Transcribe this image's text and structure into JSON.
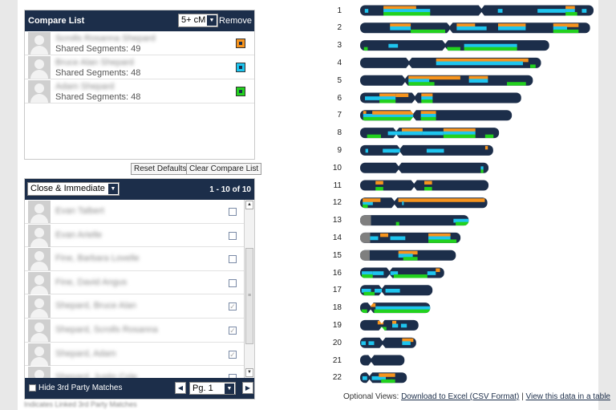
{
  "compare_list": {
    "title": "Compare List",
    "filter_value": "5+ cM",
    "remove_label": "Remove",
    "entries": [
      {
        "name": "Scrolls Rosanna Shepard",
        "segments": "Shared Segments: 49",
        "color": "#f7941d"
      },
      {
        "name": "Bruce Alan Shepard",
        "segments": "Shared Segments: 48",
        "color": "#1ec5ef"
      },
      {
        "name": "Adam Shepard",
        "segments": "Shared Segments: 48",
        "color": "#22d11e"
      }
    ],
    "reset_label": "Reset Defaults",
    "clear_label": "Clear Compare List"
  },
  "matches": {
    "filter_value": "Close & Immediate",
    "range_text": "1 - 10 of 10",
    "rows": [
      {
        "name": "Evan Talbert",
        "checked": false
      },
      {
        "name": "Evan Arielle",
        "checked": false
      },
      {
        "name": "Fine, Barbara Lovelle",
        "checked": false
      },
      {
        "name": "Fine, David Angus",
        "checked": false
      },
      {
        "name": "Shepard, Bruce Alan",
        "checked": true
      },
      {
        "name": "Shepard, Scrolls Rosanna",
        "checked": true
      },
      {
        "name": "Shepard, Adam",
        "checked": true
      },
      {
        "name": "Shepard, Justin Cole",
        "checked": false
      }
    ],
    "hide_label": "Hide 3rd Party Matches",
    "page_value": "Pg. 1",
    "below_text": "Indicates Linked 3rd Party Matches"
  },
  "chromosome_browser": {
    "colors": {
      "chrom": "#1c2e4a",
      "centromere": "#7f7f7f",
      "orange": "#f7941d",
      "cyan": "#1ec5ef",
      "green": "#22d11e"
    },
    "chromosomes": [
      {
        "label": "1",
        "len": 1.0,
        "cen": 0.52,
        "segs": [
          [
            0.02,
            0.035,
            "c"
          ],
          [
            0.1,
            0.24,
            "o"
          ],
          [
            0.1,
            0.3,
            "c"
          ],
          [
            0.1,
            0.3,
            "g"
          ],
          [
            0.59,
            0.61,
            "c"
          ],
          [
            0.76,
            0.88,
            "c"
          ],
          [
            0.88,
            0.92,
            "o"
          ],
          [
            0.88,
            0.92,
            "c"
          ],
          [
            0.88,
            0.93,
            "g"
          ],
          [
            0.95,
            0.97,
            "c"
          ]
        ]
      },
      {
        "label": "2",
        "len": 0.985,
        "cen": 0.39,
        "segs": [
          [
            0.13,
            0.22,
            "o"
          ],
          [
            0.13,
            0.22,
            "c"
          ],
          [
            0.22,
            0.37,
            "g"
          ],
          [
            0.42,
            0.5,
            "o"
          ],
          [
            0.42,
            0.55,
            "c"
          ],
          [
            0.6,
            0.72,
            "o"
          ],
          [
            0.6,
            0.72,
            "c"
          ],
          [
            0.84,
            0.95,
            "o"
          ],
          [
            0.84,
            0.9,
            "c"
          ],
          [
            0.84,
            0.95,
            "g"
          ]
        ]
      },
      {
        "label": "3",
        "len": 0.81,
        "cen": 0.45,
        "segs": [
          [
            0.02,
            0.04,
            "g"
          ],
          [
            0.15,
            0.2,
            "c"
          ],
          [
            0.46,
            0.53,
            "g"
          ],
          [
            0.55,
            0.83,
            "c"
          ],
          [
            0.55,
            0.83,
            "g"
          ]
        ]
      },
      {
        "label": "4",
        "len": 0.775,
        "cen": 0.27,
        "segs": [
          [
            0.42,
            0.93,
            "o"
          ],
          [
            0.42,
            0.9,
            "c"
          ],
          [
            0.94,
            0.97,
            "g"
          ]
        ]
      },
      {
        "label": "5",
        "len": 0.74,
        "cen": 0.26,
        "segs": [
          [
            0.28,
            0.58,
            "o"
          ],
          [
            0.28,
            0.4,
            "c"
          ],
          [
            0.28,
            0.43,
            "g"
          ],
          [
            0.63,
            0.74,
            "o"
          ],
          [
            0.63,
            0.74,
            "c"
          ],
          [
            0.85,
            0.96,
            "g"
          ]
        ]
      },
      {
        "label": "6",
        "len": 0.69,
        "cen": 0.34,
        "segs": [
          [
            0.03,
            0.13,
            "c"
          ],
          [
            0.12,
            0.22,
            "o"
          ],
          [
            0.12,
            0.22,
            "c"
          ],
          [
            0.12,
            0.22,
            "g"
          ],
          [
            0.22,
            0.3,
            "o"
          ],
          [
            0.38,
            0.45,
            "o"
          ],
          [
            0.38,
            0.45,
            "c"
          ],
          [
            0.38,
            0.45,
            "g"
          ]
        ]
      },
      {
        "label": "7",
        "len": 0.65,
        "cen": 0.35,
        "segs": [
          [
            0.02,
            0.04,
            "o"
          ],
          [
            0.02,
            0.35,
            "c"
          ],
          [
            0.08,
            0.35,
            "o"
          ],
          [
            0.02,
            0.35,
            "g"
          ],
          [
            0.4,
            0.5,
            "o"
          ],
          [
            0.4,
            0.5,
            "c"
          ],
          [
            0.4,
            0.5,
            "g"
          ]
        ]
      },
      {
        "label": "8",
        "len": 0.595,
        "cen": 0.26,
        "segs": [
          [
            0.05,
            0.15,
            "g"
          ],
          [
            0.2,
            0.3,
            "c"
          ],
          [
            0.3,
            0.45,
            "o"
          ],
          [
            0.3,
            0.45,
            "c"
          ],
          [
            0.45,
            0.6,
            "c"
          ],
          [
            0.6,
            0.83,
            "o"
          ],
          [
            0.6,
            0.83,
            "c"
          ],
          [
            0.6,
            0.83,
            "g"
          ],
          [
            0.9,
            0.96,
            "g"
          ]
        ]
      },
      {
        "label": "9",
        "len": 0.57,
        "cen": 0.3,
        "segs": [
          [
            0.04,
            0.06,
            "c"
          ],
          [
            0.17,
            0.27,
            "c"
          ],
          [
            0.25,
            0.3,
            "c"
          ],
          [
            0.5,
            0.63,
            "c"
          ],
          [
            0.94,
            0.96,
            "o"
          ]
        ]
      },
      {
        "label": "10",
        "len": 0.55,
        "cen": 0.3,
        "segs": [
          [
            0.94,
            0.96,
            "c"
          ],
          [
            0.94,
            0.96,
            "g"
          ]
        ]
      },
      {
        "label": "11",
        "len": 0.55,
        "cen": 0.42,
        "segs": [
          [
            0.12,
            0.18,
            "o"
          ],
          [
            0.12,
            0.18,
            "g"
          ],
          [
            0.5,
            0.56,
            "o"
          ],
          [
            0.5,
            0.56,
            "g"
          ]
        ]
      },
      {
        "label": "12",
        "len": 0.545,
        "cen": 0.27,
        "segs": [
          [
            0.02,
            0.1,
            "c"
          ],
          [
            0.02,
            0.16,
            "o"
          ],
          [
            0.02,
            0.06,
            "g"
          ],
          [
            0.3,
            0.98,
            "o"
          ],
          [
            0.33,
            0.34,
            "c"
          ]
        ]
      },
      {
        "label": "13",
        "len": 0.465,
        "cen": 0.1,
        "segs": [
          [
            0.33,
            0.36,
            "g"
          ],
          [
            0.86,
            1.0,
            "c"
          ],
          [
            0.88,
            1.0,
            "g"
          ]
        ]
      },
      {
        "label": "14",
        "len": 0.43,
        "cen": 0.1,
        "segs": [
          [
            0.1,
            0.18,
            "c"
          ],
          [
            0.2,
            0.28,
            "o"
          ],
          [
            0.3,
            0.45,
            "c"
          ],
          [
            0.68,
            0.9,
            "o"
          ],
          [
            0.68,
            0.9,
            "c"
          ],
          [
            0.68,
            0.96,
            "g"
          ]
        ]
      },
      {
        "label": "15",
        "len": 0.41,
        "cen": 0.1,
        "segs": [
          [
            0.4,
            0.6,
            "o"
          ],
          [
            0.4,
            0.55,
            "c"
          ],
          [
            0.45,
            0.6,
            "g"
          ]
        ]
      },
      {
        "label": "16",
        "len": 0.36,
        "cen": 0.35,
        "segs": [
          [
            0.02,
            0.15,
            "c"
          ],
          [
            0.02,
            0.15,
            "g"
          ],
          [
            0.15,
            0.28,
            "c"
          ],
          [
            0.36,
            0.45,
            "c"
          ],
          [
            0.4,
            0.8,
            "g"
          ],
          [
            0.8,
            0.9,
            "c"
          ],
          [
            0.9,
            0.95,
            "o"
          ]
        ]
      },
      {
        "label": "17",
        "len": 0.31,
        "cen": 0.3,
        "segs": [
          [
            0.02,
            0.15,
            "c"
          ],
          [
            0.05,
            0.2,
            "g"
          ],
          [
            0.2,
            0.3,
            "c"
          ],
          [
            0.35,
            0.55,
            "c"
          ]
        ]
      },
      {
        "label": "18",
        "len": 0.3,
        "cen": 0.15,
        "segs": [
          [
            0.02,
            0.1,
            "g"
          ],
          [
            0.15,
            0.22,
            "o"
          ],
          [
            0.22,
            1.0,
            "c"
          ],
          [
            0.2,
            1.0,
            "g"
          ]
        ]
      },
      {
        "label": "19",
        "len": 0.25,
        "cen": 0.37,
        "segs": [
          [
            0.3,
            0.4,
            "o"
          ],
          [
            0.35,
            0.45,
            "g"
          ],
          [
            0.55,
            0.62,
            "o"
          ],
          [
            0.55,
            0.65,
            "c"
          ],
          [
            0.7,
            0.8,
            "c"
          ]
        ]
      },
      {
        "label": "20",
        "len": 0.24,
        "cen": 0.4,
        "segs": [
          [
            0.02,
            0.1,
            "c"
          ],
          [
            0.15,
            0.25,
            "c"
          ],
          [
            0.75,
            0.95,
            "o"
          ],
          [
            0.75,
            0.9,
            "c"
          ]
        ]
      },
      {
        "label": "21",
        "len": 0.19,
        "cen": 0.25,
        "segs": []
      },
      {
        "label": "22",
        "len": 0.2,
        "cen": 0.2,
        "segs": [
          [
            0.05,
            0.15,
            "c"
          ],
          [
            0.25,
            0.55,
            "c"
          ],
          [
            0.4,
            0.75,
            "o"
          ],
          [
            0.45,
            0.7,
            "g"
          ],
          [
            0.65,
            0.75,
            "g"
          ]
        ]
      }
    ]
  },
  "optional_views": {
    "label": "Optional Views:",
    "excel_link": "Download to Excel (CSV Format)",
    "sep": "|",
    "table_link": "View this data in a table"
  }
}
